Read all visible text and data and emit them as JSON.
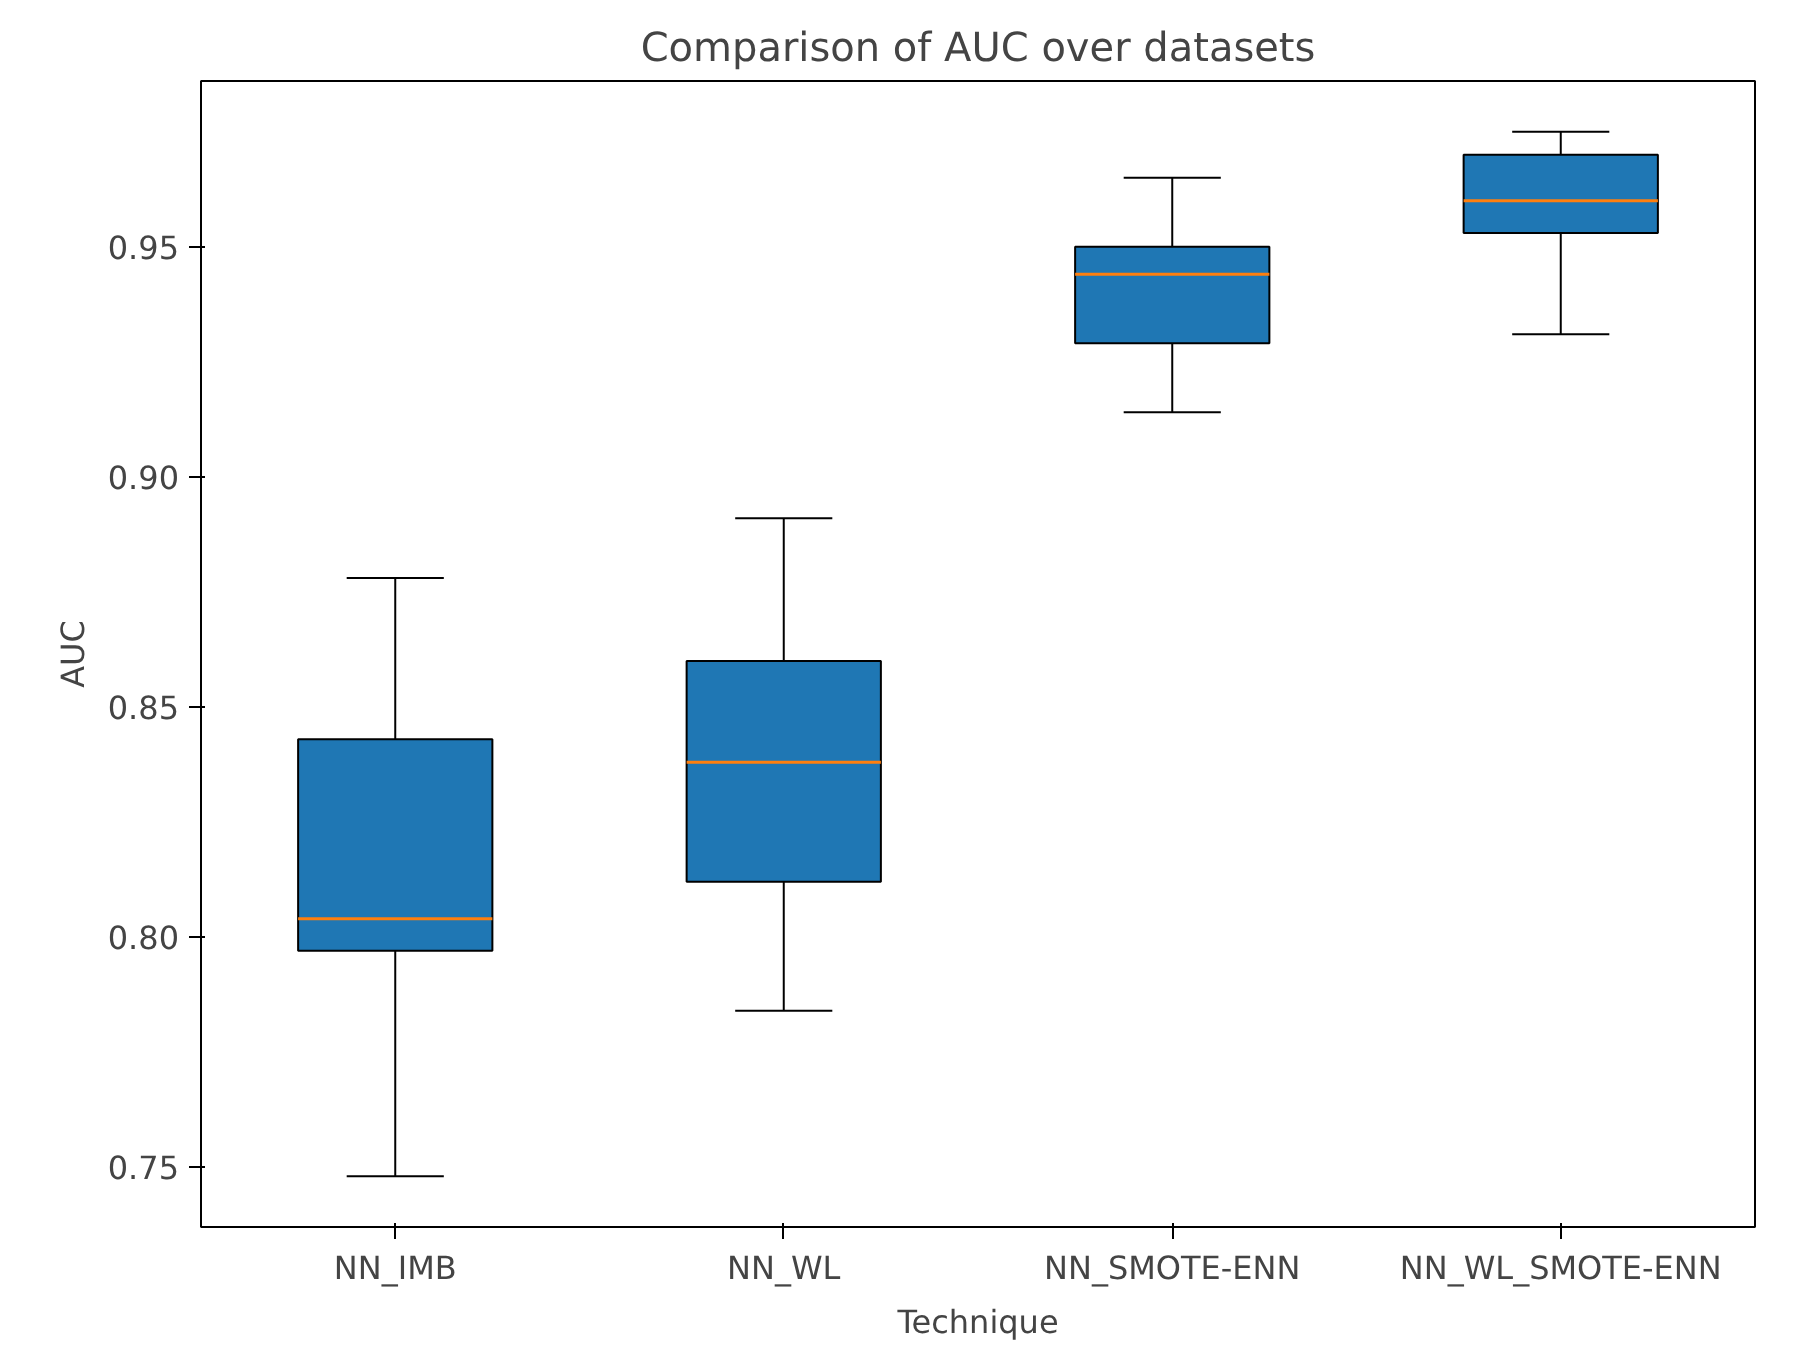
{
  "chart_data": {
    "type": "box",
    "title": "Comparison of AUC over datasets",
    "xlabel": "Technique",
    "ylabel": "AUC",
    "categories": [
      "NN_IMB",
      "NN_WL",
      "NN_SMOTE-ENN",
      "NN_WL_SMOTE-ENN"
    ],
    "series": [
      {
        "color": "#1f77b4",
        "boxes": [
          {
            "low": 0.748,
            "q1": 0.797,
            "median": 0.804,
            "q3": 0.843,
            "high": 0.878
          },
          {
            "low": 0.784,
            "q1": 0.812,
            "median": 0.838,
            "q3": 0.86,
            "high": 0.891
          },
          {
            "low": 0.914,
            "q1": 0.929,
            "median": 0.944,
            "q3": 0.95,
            "high": 0.965
          },
          {
            "low": 0.931,
            "q1": 0.953,
            "median": 0.96,
            "q3": 0.97,
            "high": 0.975
          }
        ]
      }
    ],
    "ylim": [
      0.737,
      0.986
    ],
    "yticks": [
      0.75,
      {
        "value": 0.8,
        "label": "0.80"
      },
      0.85,
      {
        "value": 0.9,
        "label": "0.90"
      },
      0.95
    ],
    "grid": false
  }
}
